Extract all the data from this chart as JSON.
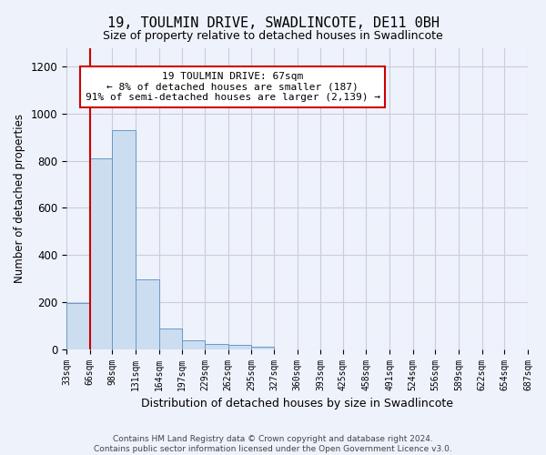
{
  "title": "19, TOULMIN DRIVE, SWADLINCOTE, DE11 0BH",
  "subtitle": "Size of property relative to detached houses in Swadlincote",
  "xlabel": "Distribution of detached houses by size in Swadlincote",
  "ylabel": "Number of detached properties",
  "footnote1": "Contains HM Land Registry data © Crown copyright and database right 2024.",
  "footnote2": "Contains public sector information licensed under the Open Government Licence v3.0.",
  "annotation_line1": "19 TOULMIN DRIVE: 67sqm",
  "annotation_line2": "← 8% of detached houses are smaller (187)",
  "annotation_line3": "91% of semi-detached houses are larger (2,139) →",
  "bar_color": "#ccddf0",
  "bar_edge_color": "#6699cc",
  "vline_color": "#cc0000",
  "annotation_box_facecolor": "#ffffff",
  "annotation_border_color": "#cc0000",
  "grid_color": "#ccccdd",
  "background_color": "#eef2fb",
  "bins": [
    33,
    66,
    98,
    131,
    164,
    197,
    229,
    262,
    295,
    327,
    360,
    393,
    425,
    458,
    491,
    524,
    556,
    589,
    622,
    654,
    687
  ],
  "bin_labels": [
    "33sqm",
    "66sqm",
    "98sqm",
    "131sqm",
    "164sqm",
    "197sqm",
    "229sqm",
    "262sqm",
    "295sqm",
    "327sqm",
    "360sqm",
    "393sqm",
    "425sqm",
    "458sqm",
    "491sqm",
    "524sqm",
    "556sqm",
    "589sqm",
    "622sqm",
    "654sqm",
    "687sqm"
  ],
  "values": [
    195,
    810,
    930,
    295,
    88,
    37,
    22,
    18,
    12,
    0,
    0,
    0,
    0,
    0,
    0,
    0,
    0,
    0,
    0,
    0
  ],
  "vline_x": 67,
  "ylim": [
    0,
    1280
  ],
  "yticks": [
    0,
    200,
    400,
    600,
    800,
    1000,
    1200
  ]
}
